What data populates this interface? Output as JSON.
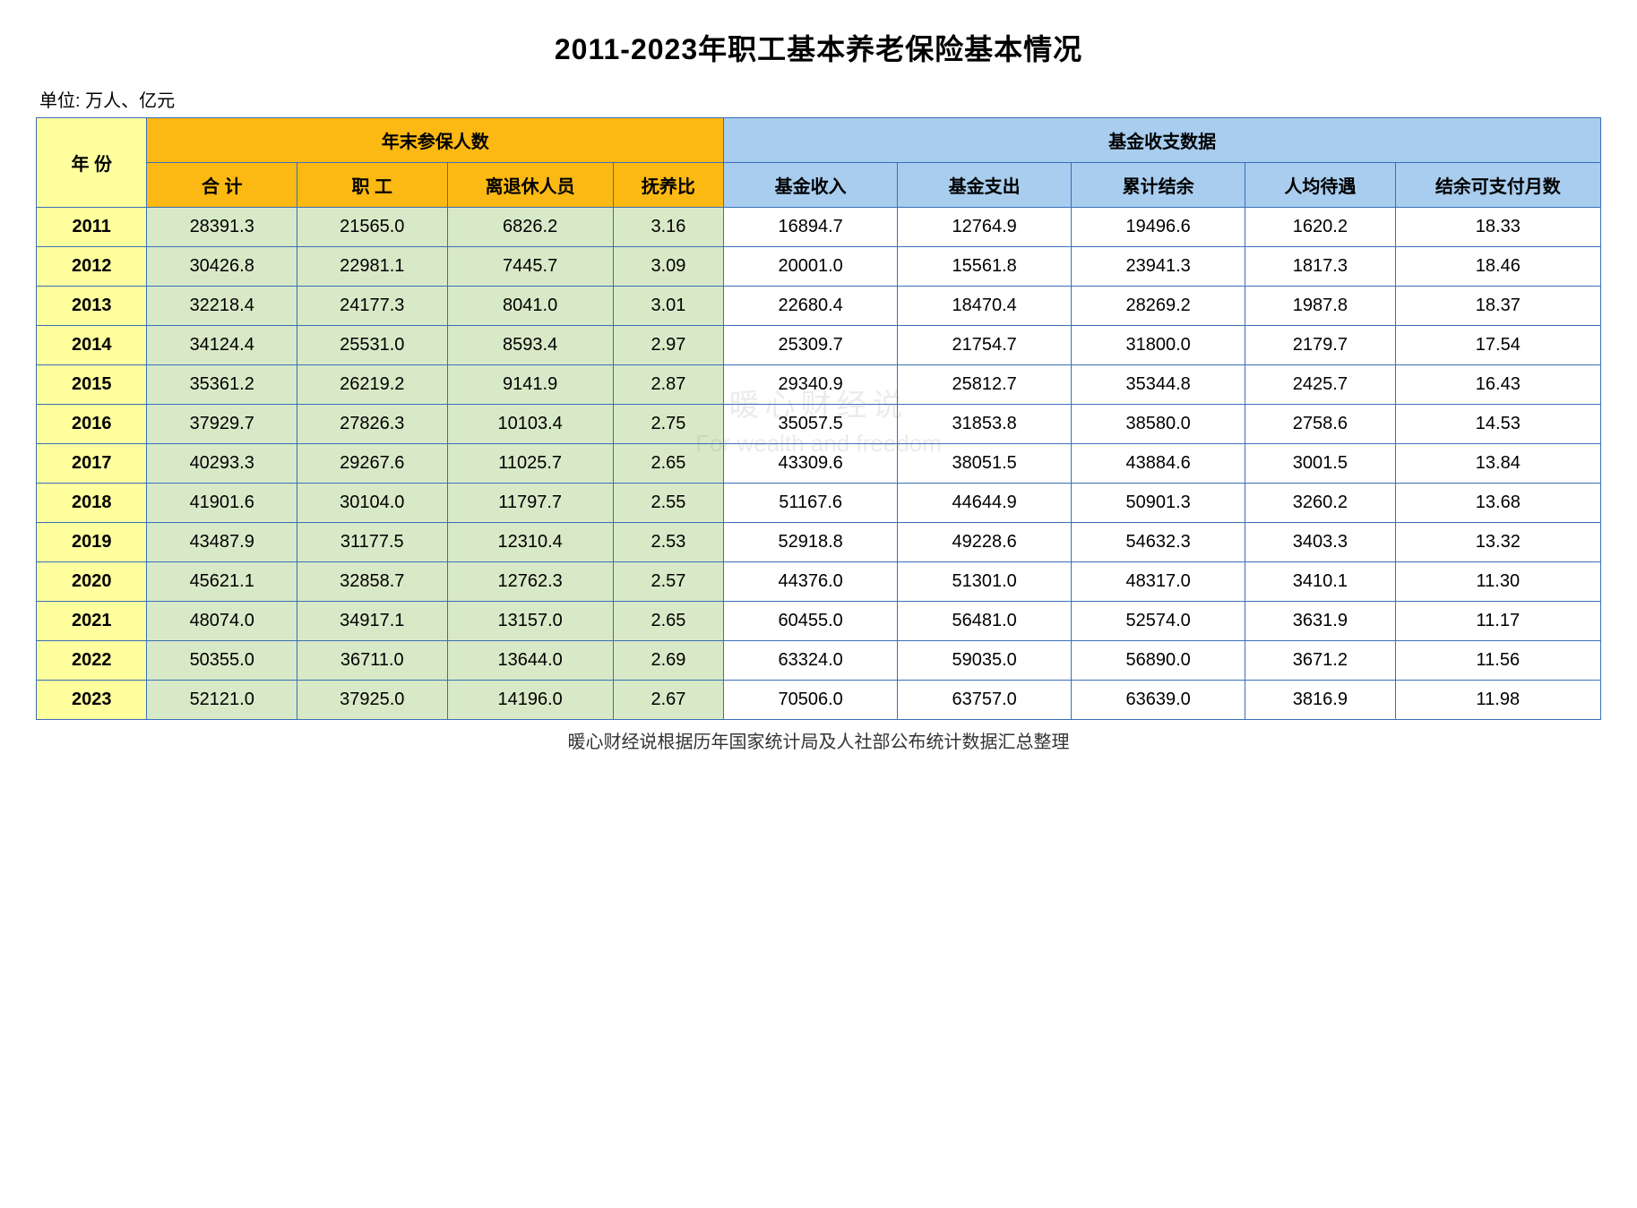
{
  "title": "2011-2023年职工基本养老保险基本情况",
  "unit": "单位: 万人、亿元",
  "footer": "暖心财经说根据历年国家统计局及人社部公布统计数据汇总整理",
  "watermark_cn": "暖心财经说",
  "watermark_en": "For wealth and freedom",
  "headers": {
    "year": "年    份",
    "group1": "年末参保人数",
    "group2": "基金收支数据",
    "sub": {
      "total": "合    计",
      "worker": "职    工",
      "retiree": "离退休人员",
      "ratio": "抚养比",
      "income": "基金收入",
      "expense": "基金支出",
      "balance": "累计结余",
      "percap": "人均待遇",
      "months": "结余可支付月数"
    }
  },
  "columns": [
    "year",
    "total",
    "worker",
    "retiree",
    "ratio",
    "income",
    "expense",
    "balance",
    "percap",
    "months"
  ],
  "green_cols": [
    "total",
    "worker",
    "retiree",
    "ratio"
  ],
  "rows": [
    {
      "year": "2011",
      "total": "28391.3",
      "worker": "21565.0",
      "retiree": "6826.2",
      "ratio": "3.16",
      "income": "16894.7",
      "expense": "12764.9",
      "balance": "19496.6",
      "percap": "1620.2",
      "months": "18.33"
    },
    {
      "year": "2012",
      "total": "30426.8",
      "worker": "22981.1",
      "retiree": "7445.7",
      "ratio": "3.09",
      "income": "20001.0",
      "expense": "15561.8",
      "balance": "23941.3",
      "percap": "1817.3",
      "months": "18.46"
    },
    {
      "year": "2013",
      "total": "32218.4",
      "worker": "24177.3",
      "retiree": "8041.0",
      "ratio": "3.01",
      "income": "22680.4",
      "expense": "18470.4",
      "balance": "28269.2",
      "percap": "1987.8",
      "months": "18.37"
    },
    {
      "year": "2014",
      "total": "34124.4",
      "worker": "25531.0",
      "retiree": "8593.4",
      "ratio": "2.97",
      "income": "25309.7",
      "expense": "21754.7",
      "balance": "31800.0",
      "percap": "2179.7",
      "months": "17.54"
    },
    {
      "year": "2015",
      "total": "35361.2",
      "worker": "26219.2",
      "retiree": "9141.9",
      "ratio": "2.87",
      "income": "29340.9",
      "expense": "25812.7",
      "balance": "35344.8",
      "percap": "2425.7",
      "months": "16.43"
    },
    {
      "year": "2016",
      "total": "37929.7",
      "worker": "27826.3",
      "retiree": "10103.4",
      "ratio": "2.75",
      "income": "35057.5",
      "expense": "31853.8",
      "balance": "38580.0",
      "percap": "2758.6",
      "months": "14.53"
    },
    {
      "year": "2017",
      "total": "40293.3",
      "worker": "29267.6",
      "retiree": "11025.7",
      "ratio": "2.65",
      "income": "43309.6",
      "expense": "38051.5",
      "balance": "43884.6",
      "percap": "3001.5",
      "months": "13.84"
    },
    {
      "year": "2018",
      "total": "41901.6",
      "worker": "30104.0",
      "retiree": "11797.7",
      "ratio": "2.55",
      "income": "51167.6",
      "expense": "44644.9",
      "balance": "50901.3",
      "percap": "3260.2",
      "months": "13.68"
    },
    {
      "year": "2019",
      "total": "43487.9",
      "worker": "31177.5",
      "retiree": "12310.4",
      "ratio": "2.53",
      "income": "52918.8",
      "expense": "49228.6",
      "balance": "54632.3",
      "percap": "3403.3",
      "months": "13.32"
    },
    {
      "year": "2020",
      "total": "45621.1",
      "worker": "32858.7",
      "retiree": "12762.3",
      "ratio": "2.57",
      "income": "44376.0",
      "expense": "51301.0",
      "balance": "48317.0",
      "percap": "3410.1",
      "months": "11.30"
    },
    {
      "year": "2021",
      "total": "48074.0",
      "worker": "34917.1",
      "retiree": "13157.0",
      "ratio": "2.65",
      "income": "60455.0",
      "expense": "56481.0",
      "balance": "52574.0",
      "percap": "3631.9",
      "months": "11.17"
    },
    {
      "year": "2022",
      "total": "50355.0",
      "worker": "36711.0",
      "retiree": "13644.0",
      "ratio": "2.69",
      "income": "63324.0",
      "expense": "59035.0",
      "balance": "56890.0",
      "percap": "3671.2",
      "months": "11.56"
    },
    {
      "year": "2023",
      "total": "52121.0",
      "worker": "37925.0",
      "retiree": "14196.0",
      "ratio": "2.67",
      "income": "70506.0",
      "expense": "63757.0",
      "balance": "63639.0",
      "percap": "3816.9",
      "months": "11.98"
    }
  ],
  "colors": {
    "border": "#3a6fb7",
    "yellow": "#ffff9e",
    "orange": "#fcb913",
    "blue": "#a8cdee",
    "green": "#d8e9c7",
    "white": "#ffffff"
  }
}
